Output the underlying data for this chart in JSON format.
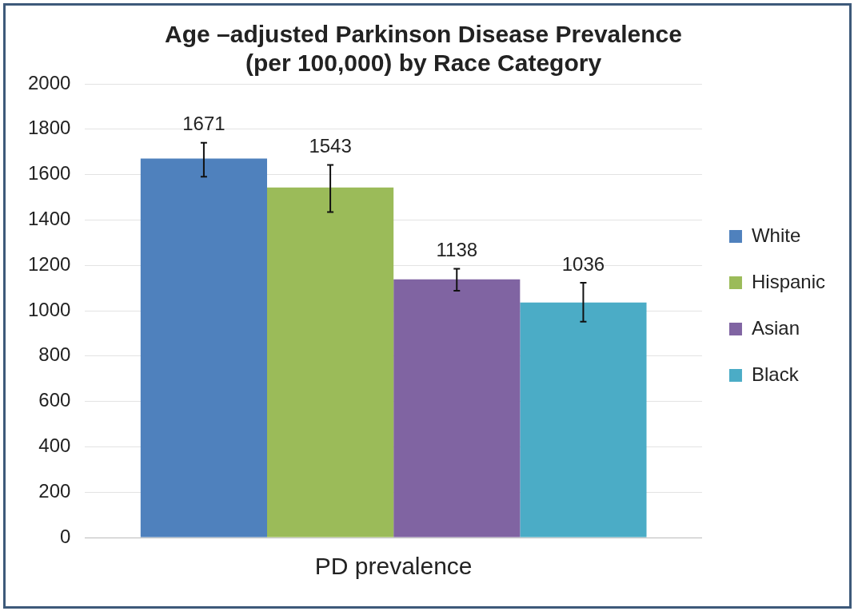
{
  "chart_data": {
    "type": "bar",
    "title": "Age –adjusted Parkinson Disease Prevalence\n(per 100,000) by Race Category",
    "categories": [
      "PD prevalence"
    ],
    "series": [
      {
        "name": "White",
        "color": "#4f81bd",
        "values": [
          1671
        ],
        "errors": [
          [
            1591,
            1740
          ]
        ]
      },
      {
        "name": "Hispanic",
        "color": "#9bbb59",
        "values": [
          1543
        ],
        "errors": [
          [
            1435,
            1643
          ]
        ]
      },
      {
        "name": "Asian",
        "color": "#8064a2",
        "values": [
          1138
        ],
        "errors": [
          [
            1088,
            1185
          ]
        ]
      },
      {
        "name": "Black",
        "color": "#4bacc6",
        "values": [
          1036
        ],
        "errors": [
          [
            952,
            1123
          ]
        ]
      }
    ],
    "ylim": [
      0,
      2000
    ],
    "yticks": [
      0,
      200,
      400,
      600,
      800,
      1000,
      1200,
      1400,
      1600,
      1800,
      2000
    ],
    "grid": "y",
    "legend": "right",
    "data_labels": true
  }
}
